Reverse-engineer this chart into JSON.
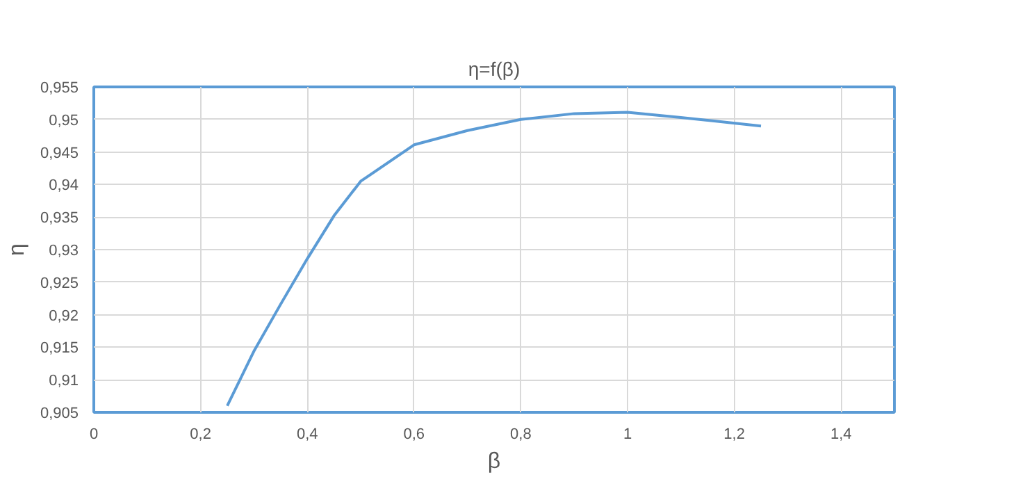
{
  "chart_data": {
    "type": "line",
    "title": "η=f(β)",
    "xlabel": "β",
    "ylabel": "η",
    "x": [
      0.25,
      0.3,
      0.35,
      0.4,
      0.45,
      0.5,
      0.6,
      0.7,
      0.8,
      0.9,
      1.0,
      1.1,
      1.25
    ],
    "series": [
      {
        "color": "#5b9bd5",
        "values": [
          0.906,
          0.9144,
          0.9216,
          0.9286,
          0.9352,
          0.9405,
          0.9461,
          0.9483,
          0.95,
          0.9509,
          0.9511,
          0.9503,
          0.949
        ]
      }
    ],
    "xlim": [
      0,
      1.5
    ],
    "ylim": [
      0.905,
      0.955
    ],
    "xticks": [
      0,
      {
        "value": 0.2,
        "label": "0,2"
      },
      {
        "value": 0.4,
        "label": "0,4"
      },
      {
        "value": 0.6,
        "label": "0,6"
      },
      {
        "value": 0.8,
        "label": "0,8"
      },
      1,
      {
        "value": 1.2,
        "label": "1,2"
      },
      {
        "value": 1.4,
        "label": "1,4"
      }
    ],
    "yticks": [
      {
        "value": 0.905,
        "label": "0,905"
      },
      {
        "value": 0.91,
        "label": "0,91"
      },
      {
        "value": 0.915,
        "label": "0,915"
      },
      {
        "value": 0.92,
        "label": "0,92"
      },
      {
        "value": 0.925,
        "label": "0,925"
      },
      {
        "value": 0.93,
        "label": "0,93"
      },
      {
        "value": 0.935,
        "label": "0,935"
      },
      {
        "value": 0.94,
        "label": "0,94"
      },
      {
        "value": 0.945,
        "label": "0,945"
      },
      {
        "value": 0.95,
        "label": "0,95"
      },
      {
        "value": 0.955,
        "label": "0,955"
      }
    ],
    "grid": true,
    "marker": "none",
    "line_style": "solid"
  }
}
